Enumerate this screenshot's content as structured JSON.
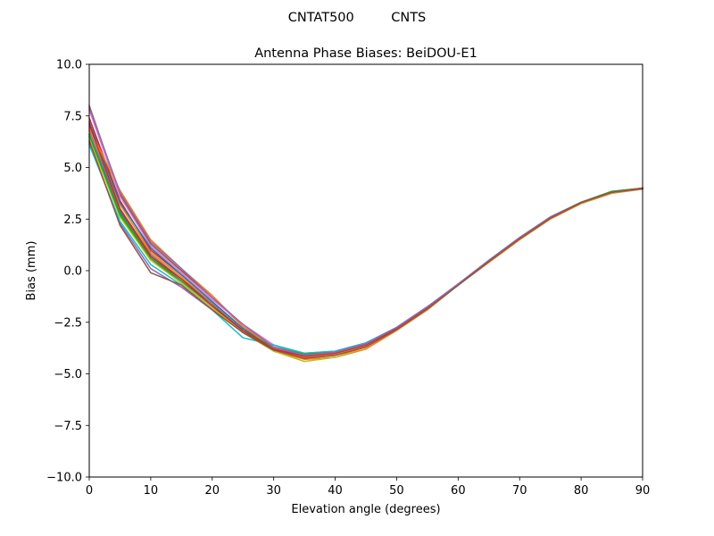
{
  "suptitle": "CNTAT500         CNTS",
  "chart_data": {
    "type": "line",
    "title": "Antenna Phase Biases: BeiDOU-E1",
    "xlabel": "Elevation angle (degrees)",
    "ylabel": "Bias (mm)",
    "xlim": [
      0,
      90
    ],
    "ylim": [
      -10,
      10
    ],
    "xticks": [
      0,
      10,
      20,
      30,
      40,
      50,
      60,
      70,
      80,
      90
    ],
    "xtick_labels": [
      "0",
      "10",
      "20",
      "30",
      "40",
      "50",
      "60",
      "70",
      "80",
      "90"
    ],
    "yticks": [
      -10,
      -7.5,
      -5,
      -2.5,
      0,
      2.5,
      5,
      7.5,
      10
    ],
    "ytick_labels": [
      "−10.0",
      "−7.5",
      "−5.0",
      "−2.5",
      "0.0",
      "2.5",
      "5.0",
      "7.5",
      "10.0"
    ],
    "grid": false,
    "legend": "none",
    "x": [
      0,
      5,
      10,
      15,
      20,
      25,
      30,
      35,
      40,
      45,
      50,
      55,
      60,
      65,
      70,
      75,
      80,
      85,
      90
    ],
    "series": [
      {
        "color": "#1f77b4",
        "values": [
          6.6,
          2.9,
          0.6,
          -0.6,
          -1.8,
          -3.0,
          -3.8,
          -4.2,
          -4.0,
          -3.6,
          -2.8,
          -1.8,
          -0.7,
          0.45,
          1.55,
          2.55,
          3.3,
          3.8,
          4.0
        ]
      },
      {
        "color": "#ff7f0e",
        "values": [
          7.0,
          3.2,
          0.9,
          -0.3,
          -1.6,
          -2.9,
          -3.9,
          -4.3,
          -4.2,
          -3.8,
          -2.9,
          -1.9,
          -0.7,
          0.4,
          1.5,
          2.5,
          3.25,
          3.75,
          3.95
        ]
      },
      {
        "color": "#2ca02c",
        "values": [
          6.5,
          2.8,
          0.7,
          -0.5,
          -1.7,
          -3.0,
          -3.7,
          -4.1,
          -4.0,
          -3.6,
          -2.8,
          -1.8,
          -0.65,
          0.5,
          1.6,
          2.6,
          3.3,
          3.8,
          3.97
        ]
      },
      {
        "color": "#d62728",
        "values": [
          7.4,
          3.4,
          1.0,
          -0.2,
          -1.5,
          -2.8,
          -3.8,
          -4.25,
          -4.1,
          -3.7,
          -2.85,
          -1.85,
          -0.7,
          0.45,
          1.55,
          2.55,
          3.3,
          3.8,
          4.0
        ]
      },
      {
        "color": "#9467bd",
        "values": [
          6.2,
          2.3,
          0.1,
          -0.8,
          -1.9,
          -2.9,
          -3.8,
          -4.2,
          -4.05,
          -3.65,
          -2.8,
          -1.8,
          -0.7,
          0.45,
          1.55,
          2.55,
          3.3,
          3.8,
          4.0
        ]
      },
      {
        "color": "#8c564b",
        "values": [
          8.0,
          3.7,
          1.3,
          0.0,
          -1.3,
          -2.7,
          -3.7,
          -4.15,
          -4.0,
          -3.6,
          -2.8,
          -1.8,
          -0.7,
          0.45,
          1.55,
          2.55,
          3.3,
          3.8,
          3.98
        ]
      },
      {
        "color": "#e377c2",
        "values": [
          7.8,
          3.6,
          1.2,
          -0.1,
          -1.4,
          -2.6,
          -3.6,
          -4.1,
          -3.9,
          -3.5,
          -2.75,
          -1.75,
          -0.65,
          0.5,
          1.6,
          2.6,
          3.32,
          3.82,
          4.0
        ]
      },
      {
        "color": "#7f7f7f",
        "values": [
          6.8,
          3.0,
          0.8,
          -0.4,
          -1.6,
          -2.9,
          -3.8,
          -4.0,
          -3.9,
          -3.5,
          -2.75,
          -1.75,
          -0.65,
          0.5,
          1.6,
          2.6,
          3.3,
          3.8,
          3.98
        ]
      },
      {
        "color": "#bcbd22",
        "values": [
          6.4,
          2.6,
          0.5,
          -0.6,
          -1.8,
          -3.0,
          -3.9,
          -4.4,
          -4.2,
          -3.7,
          -2.85,
          -1.85,
          -0.7,
          0.45,
          1.55,
          2.55,
          3.28,
          3.78,
          3.98
        ]
      },
      {
        "color": "#17becf",
        "values": [
          6.1,
          2.4,
          0.3,
          -0.7,
          -1.9,
          -3.25,
          -3.6,
          -4.0,
          -3.9,
          -3.5,
          -2.75,
          -1.75,
          -0.65,
          0.5,
          1.6,
          2.6,
          3.3,
          3.8,
          3.98
        ]
      },
      {
        "color": "#1f77b4",
        "values": [
          7.2,
          3.3,
          1.1,
          -0.2,
          -1.5,
          -2.8,
          -3.75,
          -4.2,
          -4.05,
          -3.65,
          -2.8,
          -1.8,
          -0.7,
          0.45,
          1.55,
          2.55,
          3.3,
          3.8,
          4.0
        ]
      },
      {
        "color": "#ff7f0e",
        "values": [
          6.9,
          3.9,
          1.5,
          0.1,
          -1.2,
          -2.7,
          -3.75,
          -4.2,
          -4.05,
          -3.65,
          -2.8,
          -1.8,
          -0.7,
          0.45,
          1.55,
          2.55,
          3.3,
          3.8,
          4.0
        ]
      },
      {
        "color": "#2ca02c",
        "values": [
          6.6,
          2.7,
          0.6,
          -0.5,
          -1.7,
          -2.9,
          -3.7,
          -4.05,
          -3.95,
          -3.55,
          -2.75,
          -1.75,
          -0.65,
          0.5,
          1.6,
          2.6,
          3.32,
          3.85,
          4.0
        ]
      },
      {
        "color": "#d62728",
        "values": [
          7.1,
          3.0,
          0.7,
          -0.4,
          -1.7,
          -2.9,
          -3.8,
          -4.15,
          -4.0,
          -3.6,
          -2.8,
          -1.8,
          -0.7,
          0.45,
          1.55,
          2.55,
          3.3,
          3.8,
          4.0
        ]
      },
      {
        "color": "#9467bd",
        "values": [
          7.9,
          3.8,
          1.4,
          0.1,
          -1.3,
          -2.6,
          -3.7,
          -4.1,
          -3.95,
          -3.55,
          -2.75,
          -1.75,
          -0.65,
          0.5,
          1.6,
          2.6,
          3.3,
          3.8,
          3.98
        ]
      },
      {
        "color": "#8c564b",
        "values": [
          6.3,
          2.2,
          -0.1,
          -0.7,
          -1.9,
          -3.0,
          -3.85,
          -4.25,
          -4.1,
          -3.7,
          -2.85,
          -1.85,
          -0.7,
          0.45,
          1.55,
          2.55,
          3.3,
          3.8,
          3.98
        ]
      }
    ]
  }
}
